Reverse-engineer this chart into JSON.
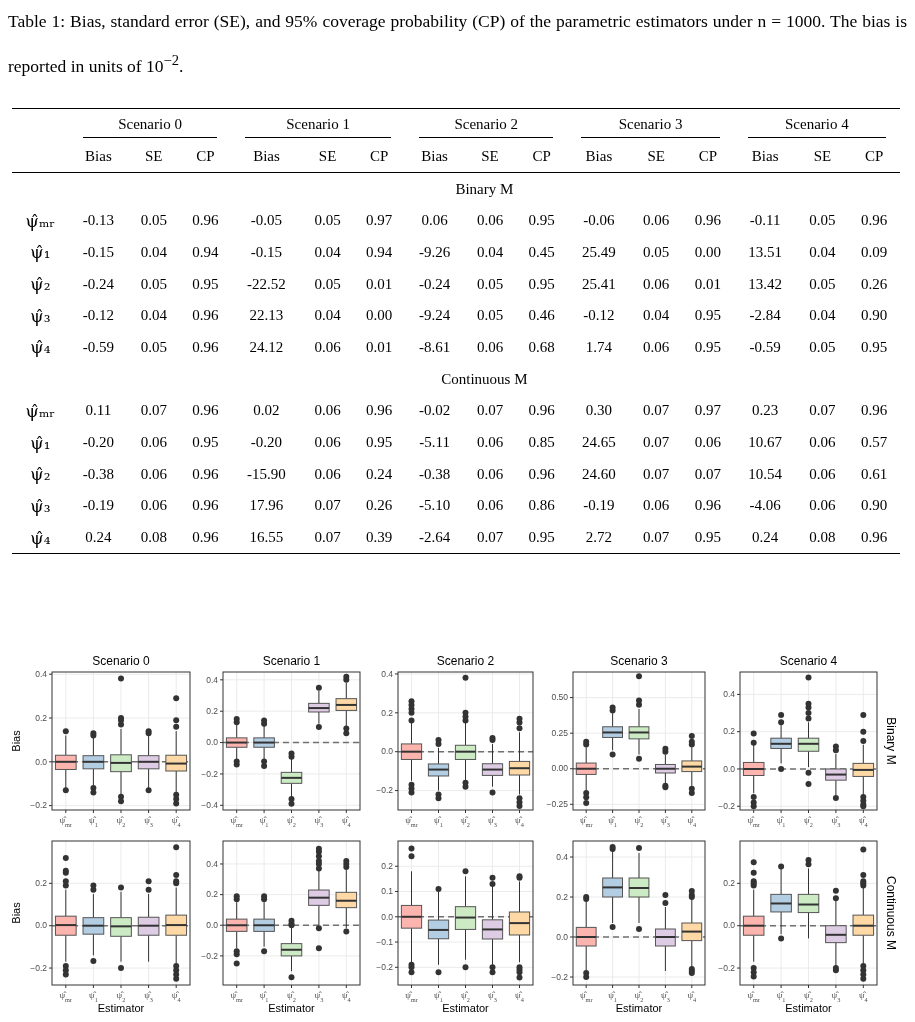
{
  "chart_data": [
    {
      "type": "other",
      "title": "Table 1: Bias, standard error (SE), and 95% coverage probability (CP) of the parametric estimators under n = 1000. The bias is reported in units of 10$^{−2}$.",
      "annotations": [
        "Scenario 0",
        "Scenario 1",
        "Scenario 2",
        "Scenario 3",
        "Scenario 4"
      ],
      "categories": [
        "Bias",
        "SE",
        "CP",
        "Bias",
        "SE",
        "CP",
        "Bias",
        "SE",
        "CP",
        "Bias",
        "SE",
        "CP",
        "Bias",
        "SE",
        "CP"
      ],
      "y_categories": [
        "Binary M",
        "ψ̂ₘᵣ",
        "ψ̂₁",
        "ψ̂₂",
        "ψ̂₃",
        "ψ̂₄",
        "Continuous M",
        "ψ̂ₘᵣ",
        "ψ̂₁",
        "ψ̂₂",
        "ψ̂₃",
        "ψ̂₄"
      ],
      "cell_labels": [
        [
          null,
          null,
          null,
          null,
          null,
          null,
          null,
          null,
          null,
          null,
          null,
          null,
          null,
          null,
          null
        ],
        [
          "-0.13",
          "0.05",
          "0.96",
          "-0.05",
          "0.05",
          "0.97",
          "0.06",
          "0.06",
          "0.95",
          "-0.06",
          "0.06",
          "0.96",
          "-0.11",
          "0.05",
          "0.96"
        ],
        [
          "-0.15",
          "0.04",
          "0.94",
          "-0.15",
          "0.04",
          "0.94",
          "-9.26",
          "0.04",
          "0.45",
          "25.49",
          "0.05",
          "0.00",
          "13.51",
          "0.04",
          "0.09"
        ],
        [
          "-0.24",
          "0.05",
          "0.95",
          "-22.52",
          "0.05",
          "0.01",
          "-0.24",
          "0.05",
          "0.95",
          "25.41",
          "0.06",
          "0.01",
          "13.42",
          "0.05",
          "0.26"
        ],
        [
          "-0.12",
          "0.04",
          "0.96",
          "22.13",
          "0.04",
          "0.00",
          "-9.24",
          "0.05",
          "0.46",
          "-0.12",
          "0.04",
          "0.95",
          "-2.84",
          "0.04",
          "0.90"
        ],
        [
          "-0.59",
          "0.05",
          "0.96",
          "24.12",
          "0.06",
          "0.01",
          "-8.61",
          "0.06",
          "0.68",
          "1.74",
          "0.06",
          "0.95",
          "-0.59",
          "0.05",
          "0.95"
        ],
        [
          null,
          null,
          null,
          null,
          null,
          null,
          null,
          null,
          null,
          null,
          null,
          null,
          null,
          null,
          null
        ],
        [
          "0.11",
          "0.07",
          "0.96",
          "0.02",
          "0.06",
          "0.96",
          "-0.02",
          "0.07",
          "0.96",
          "0.30",
          "0.07",
          "0.97",
          "0.23",
          "0.07",
          "0.96"
        ],
        [
          "-0.20",
          "0.06",
          "0.95",
          "-0.20",
          "0.06",
          "0.95",
          "-5.11",
          "0.06",
          "0.85",
          "24.65",
          "0.07",
          "0.06",
          "10.67",
          "0.06",
          "0.57"
        ],
        [
          "-0.38",
          "0.06",
          "0.96",
          "-15.90",
          "0.06",
          "0.24",
          "-0.38",
          "0.06",
          "0.96",
          "24.60",
          "0.07",
          "0.07",
          "10.54",
          "0.06",
          "0.61"
        ],
        [
          "-0.19",
          "0.06",
          "0.96",
          "17.96",
          "0.07",
          "0.26",
          "-5.10",
          "0.06",
          "0.86",
          "-0.19",
          "0.06",
          "0.96",
          "-4.06",
          "0.06",
          "0.90"
        ],
        [
          "0.24",
          "0.08",
          "0.96",
          "16.55",
          "0.07",
          "0.39",
          "-2.64",
          "0.07",
          "0.95",
          "2.72",
          "0.07",
          "0.95",
          "0.24",
          "0.08",
          "0.96"
        ]
      ]
    },
    {
      "type": "box",
      "title": "Scenario 0",
      "ylabel": "Bias",
      "categories": [
        "ψ̂$_{mr}$",
        "ψ̂$_{1}$",
        "ψ̂$_{2}$",
        "ψ̂$_{3}$",
        "ψ̂$_{4}$"
      ],
      "colors": [
        "#fbb4ae",
        "#b3cde3",
        "#ccebc5",
        "#decbe4",
        "#fed9a6"
      ],
      "ylim": [
        -0.22,
        0.41
      ],
      "yticks": [
        -0.2,
        {
          "value": 0,
          "label": "0.0"
        },
        0.2,
        0.4
      ],
      "grid": true,
      "ref_lines": [
        {
          "axis": "y",
          "value": 0,
          "line_style": "dashed"
        }
      ],
      "boxes": [
        {
          "low": -0.12,
          "q1": -0.035,
          "median": 0,
          "q3": 0.03,
          "high": 0.12,
          "outliers": [
            0.14,
            -0.13
          ]
        },
        {
          "low": -0.11,
          "q1": -0.032,
          "median": 0,
          "q3": 0.028,
          "high": 0.11,
          "outliers": [
            0.12,
            0.13,
            -0.12,
            -0.14
          ]
        },
        {
          "low": -0.15,
          "q1": -0.045,
          "median": -0.005,
          "q3": 0.032,
          "high": 0.15,
          "outliers": [
            0.38,
            0.2,
            0.19,
            0.17,
            -0.16,
            -0.18
          ]
        },
        {
          "low": -0.12,
          "q1": -0.032,
          "median": 0,
          "q3": 0.028,
          "high": 0.12,
          "outliers": [
            0.13,
            0.14,
            -0.13
          ]
        },
        {
          "low": -0.14,
          "q1": -0.042,
          "median": -0.008,
          "q3": 0.03,
          "high": 0.14,
          "outliers": [
            0.29,
            0.19,
            0.16,
            -0.15,
            -0.17,
            -0.19
          ]
        }
      ]
    },
    {
      "type": "box",
      "title": "Scenario 1",
      "categories": [
        "ψ̂$_{mr}$",
        "ψ̂$_{1}$",
        "ψ̂$_{2}$",
        "ψ̂$_{3}$",
        "ψ̂$_{4}$"
      ],
      "colors": [
        "#fbb4ae",
        "#b3cde3",
        "#ccebc5",
        "#decbe4",
        "#fed9a6"
      ],
      "ylim": [
        -0.43,
        0.45
      ],
      "yticks": [
        -0.4,
        -0.2,
        {
          "value": 0,
          "label": "0.0"
        },
        0.2,
        0.4
      ],
      "grid": true,
      "ref_lines": [
        {
          "axis": "y",
          "value": 0,
          "line_style": "dashed"
        }
      ],
      "boxes": [
        {
          "low": -0.11,
          "q1": -0.03,
          "median": 0,
          "q3": 0.03,
          "high": 0.12,
          "outliers": [
            0.13,
            0.15,
            -0.12,
            -0.14
          ]
        },
        {
          "low": -0.11,
          "q1": -0.03,
          "median": 0,
          "q3": 0.03,
          "high": 0.11,
          "outliers": [
            0.12,
            0.14,
            -0.12,
            -0.15
          ]
        },
        {
          "low": -0.35,
          "q1": -0.26,
          "median": -0.225,
          "q3": -0.19,
          "high": -0.1,
          "outliers": [
            -0.07,
            -0.09,
            -0.36,
            -0.39
          ]
        },
        {
          "low": 0.12,
          "q1": 0.195,
          "median": 0.22,
          "q3": 0.25,
          "high": 0.33,
          "outliers": [
            0.35,
            0.1
          ]
        },
        {
          "low": 0.1,
          "q1": 0.205,
          "median": 0.24,
          "q3": 0.28,
          "high": 0.38,
          "outliers": [
            0.4,
            0.42,
            0.09,
            0.06
          ]
        }
      ]
    },
    {
      "type": "box",
      "title": "Scenario 2",
      "categories": [
        "ψ̂$_{mr}$",
        "ψ̂$_{1}$",
        "ψ̂$_{2}$",
        "ψ̂$_{3}$",
        "ψ̂$_{4}$"
      ],
      "colors": [
        "#fbb4ae",
        "#b3cde3",
        "#ccebc5",
        "#decbe4",
        "#fed9a6"
      ],
      "ylim": [
        -0.3,
        0.41
      ],
      "yticks": [
        -0.2,
        {
          "value": 0,
          "label": "0.0"
        },
        0.2,
        0.4
      ],
      "grid": true,
      "ref_lines": [
        {
          "axis": "y",
          "value": 0,
          "line_style": "dashed"
        }
      ],
      "boxes": [
        {
          "low": -0.15,
          "q1": -0.04,
          "median": 0,
          "q3": 0.04,
          "high": 0.15,
          "outliers": [
            0.16,
            0.2,
            0.22,
            0.24,
            0.26,
            -0.17,
            -0.19,
            -0.21
          ]
        },
        {
          "low": -0.2,
          "q1": -0.125,
          "median": -0.092,
          "q3": -0.063,
          "high": 0.02,
          "outliers": [
            0.04,
            0.06,
            -0.22,
            -0.24
          ]
        },
        {
          "low": -0.15,
          "q1": -0.04,
          "median": 0,
          "q3": 0.033,
          "high": 0.15,
          "outliers": [
            0.38,
            0.2,
            0.18,
            0.16,
            -0.16,
            -0.18
          ]
        },
        {
          "low": -0.18,
          "q1": -0.122,
          "median": -0.092,
          "q3": -0.062,
          "high": 0.04,
          "outliers": [
            0.06,
            0.07,
            -0.21
          ]
        },
        {
          "low": -0.22,
          "q1": -0.12,
          "median": -0.085,
          "q3": -0.05,
          "high": 0.1,
          "outliers": [
            0.12,
            0.15,
            0.17,
            -0.24,
            -0.26,
            -0.28
          ]
        }
      ]
    },
    {
      "type": "box",
      "title": "Scenario 3",
      "categories": [
        "ψ̂$_{mr}$",
        "ψ̂$_{1}$",
        "ψ̂$_{2}$",
        "ψ̂$_{3}$",
        "ψ̂$_{4}$"
      ],
      "colors": [
        "#fbb4ae",
        "#b3cde3",
        "#ccebc5",
        "#decbe4",
        "#fed9a6"
      ],
      "ylim": [
        -0.29,
        0.68
      ],
      "yticks": [
        {
          "value": -0.25,
          "label": "−0.25"
        },
        {
          "value": 0,
          "label": "0.00"
        },
        0.25,
        {
          "value": 0.5,
          "label": "0.50"
        }
      ],
      "grid": true,
      "ref_lines": [
        {
          "axis": "y",
          "value": 0,
          "line_style": "dashed"
        }
      ],
      "boxes": [
        {
          "low": -0.15,
          "q1": -0.04,
          "median": 0,
          "q3": 0.04,
          "high": 0.15,
          "outliers": [
            0.17,
            0.19,
            -0.17,
            -0.2,
            -0.24
          ]
        },
        {
          "low": 0.13,
          "q1": 0.22,
          "median": 0.255,
          "q3": 0.295,
          "high": 0.39,
          "outliers": [
            0.41,
            0.43,
            0.1
          ]
        },
        {
          "low": 0.1,
          "q1": 0.21,
          "median": 0.255,
          "q3": 0.295,
          "high": 0.42,
          "outliers": [
            0.45,
            0.48,
            0.65,
            0.07
          ]
        },
        {
          "low": -0.1,
          "q1": -0.03,
          "median": 0,
          "q3": 0.03,
          "high": 0.1,
          "outliers": [
            0.12,
            0.14,
            -0.12,
            -0.13
          ]
        },
        {
          "low": -0.12,
          "q1": -0.02,
          "median": 0.015,
          "q3": 0.055,
          "high": 0.15,
          "outliers": [
            0.17,
            0.19,
            0.23,
            -0.14,
            -0.17
          ]
        }
      ]
    },
    {
      "type": "box",
      "title": "Scenario 4",
      "annotations": [
        "Binary M"
      ],
      "categories": [
        "ψ̂$_{mr}$",
        "ψ̂$_{1}$",
        "ψ̂$_{2}$",
        "ψ̂$_{3}$",
        "ψ̂$_{4}$"
      ],
      "colors": [
        "#fbb4ae",
        "#b3cde3",
        "#ccebc5",
        "#decbe4",
        "#fed9a6"
      ],
      "ylim": [
        -0.22,
        0.52
      ],
      "yticks": [
        -0.2,
        {
          "value": 0,
          "label": "0.0"
        },
        0.2,
        0.4
      ],
      "grid": true,
      "ref_lines": [
        {
          "axis": "y",
          "value": 0,
          "line_style": "dashed"
        }
      ],
      "boxes": [
        {
          "low": -0.13,
          "q1": -0.035,
          "median": 0,
          "q3": 0.035,
          "high": 0.13,
          "outliers": [
            0.14,
            0.19,
            -0.15,
            -0.18,
            -0.2
          ]
        },
        {
          "low": 0.03,
          "q1": 0.11,
          "median": 0.135,
          "q3": 0.165,
          "high": 0.24,
          "outliers": [
            0.25,
            0.29,
            0
          ]
        },
        {
          "low": 0.01,
          "q1": 0.095,
          "median": 0.135,
          "q3": 0.165,
          "high": 0.25,
          "outliers": [
            0.27,
            0.3,
            0.33,
            0.35,
            0.49,
            -0.02,
            -0.08
          ]
        },
        {
          "low": -0.14,
          "q1": -0.06,
          "median": -0.03,
          "q3": 0,
          "high": 0.08,
          "outliers": [
            0.1,
            0.12,
            -0.155
          ]
        },
        {
          "low": -0.14,
          "q1": -0.04,
          "median": -0.005,
          "q3": 0.03,
          "high": 0.13,
          "outliers": [
            0.15,
            0.2,
            0.29,
            -0.15,
            -0.17,
            -0.19,
            -0.2
          ]
        }
      ]
    },
    {
      "type": "box",
      "ylabel": "Bias",
      "xlabel": "Estimator",
      "categories": [
        "ψ̂$_{mr}$",
        "ψ̂$_{1}$",
        "ψ̂$_{2}$",
        "ψ̂$_{3}$",
        "ψ̂$_{4}$"
      ],
      "colors": [
        "#fbb4ae",
        "#b3cde3",
        "#ccebc5",
        "#decbe4",
        "#fed9a6"
      ],
      "ylim": [
        -0.28,
        0.4
      ],
      "yticks": [
        -0.2,
        {
          "value": 0,
          "label": "0.0"
        },
        0.2
      ],
      "grid": true,
      "ref_lines": [
        {
          "axis": "y",
          "value": 0,
          "line_style": "dashed"
        }
      ],
      "boxes": [
        {
          "low": -0.17,
          "q1": -0.045,
          "median": 0.003,
          "q3": 0.045,
          "high": 0.17,
          "outliers": [
            0.19,
            0.21,
            0.25,
            0.26,
            0.32,
            -0.19,
            -0.21,
            -0.23
          ]
        },
        {
          "low": -0.14,
          "q1": -0.04,
          "median": 0,
          "q3": 0.038,
          "high": 0.15,
          "outliers": [
            0.17,
            0.19,
            -0.167
          ]
        },
        {
          "low": -0.17,
          "q1": -0.05,
          "median": -0.003,
          "q3": 0.038,
          "high": 0.16,
          "outliers": [
            0.18,
            -0.2
          ]
        },
        {
          "low": -0.17,
          "q1": -0.045,
          "median": 0,
          "q3": 0.04,
          "high": 0.15,
          "outliers": [
            0.17,
            0.21
          ]
        },
        {
          "low": -0.18,
          "q1": -0.045,
          "median": 0.003,
          "q3": 0.05,
          "high": 0.18,
          "outliers": [
            0.2,
            0.21,
            0.24,
            0.37,
            -0.19,
            -0.21,
            -0.23,
            -0.25
          ]
        }
      ]
    },
    {
      "type": "box",
      "xlabel": "Estimator",
      "categories": [
        "ψ̂$_{mr}$",
        "ψ̂$_{1}$",
        "ψ̂$_{2}$",
        "ψ̂$_{3}$",
        "ψ̂$_{4}$"
      ],
      "colors": [
        "#fbb4ae",
        "#b3cde3",
        "#ccebc5",
        "#decbe4",
        "#fed9a6"
      ],
      "ylim": [
        -0.39,
        0.55
      ],
      "yticks": [
        -0.2,
        {
          "value": 0,
          "label": "0.0"
        },
        0.2,
        0.4
      ],
      "grid": true,
      "ref_lines": [
        {
          "axis": "y",
          "value": 0,
          "line_style": "dashed"
        }
      ],
      "boxes": [
        {
          "low": -0.15,
          "q1": -0.04,
          "median": 0,
          "q3": 0.04,
          "high": 0.15,
          "outliers": [
            0.17,
            0.19,
            -0.17,
            -0.19,
            -0.25
          ]
        },
        {
          "low": -0.14,
          "q1": -0.04,
          "median": 0,
          "q3": 0.04,
          "high": 0.15,
          "outliers": [
            0.17,
            0.19,
            -0.17
          ]
        },
        {
          "low": -0.3,
          "q1": -0.2,
          "median": -0.16,
          "q3": -0.12,
          "high": -0.01,
          "outliers": [
            0,
            0.01,
            0.03,
            -0.34
          ]
        },
        {
          "low": 0,
          "q1": 0.13,
          "median": 0.18,
          "q3": 0.23,
          "high": 0.36,
          "outliers": [
            0.37,
            0.4,
            0.42,
            0.45,
            0.48,
            0.5,
            -0.02,
            -0.15
          ]
        },
        {
          "low": -0.02,
          "q1": 0.115,
          "median": 0.16,
          "q3": 0.215,
          "high": 0.36,
          "outliers": [
            0.38,
            0.4,
            0.42,
            -0.04
          ]
        }
      ]
    },
    {
      "type": "box",
      "xlabel": "Estimator",
      "categories": [
        "ψ̂$_{mr}$",
        "ψ̂$_{1}$",
        "ψ̂$_{2}$",
        "ψ̂$_{3}$",
        "ψ̂$_{4}$"
      ],
      "colors": [
        "#fbb4ae",
        "#b3cde3",
        "#ccebc5",
        "#decbe4",
        "#fed9a6"
      ],
      "ylim": [
        -0.27,
        0.3
      ],
      "yticks": [
        -0.2,
        -0.1,
        {
          "value": 0,
          "label": "0.0"
        },
        0.1,
        0.2
      ],
      "grid": true,
      "ref_lines": [
        {
          "axis": "y",
          "value": 0,
          "line_style": "dashed"
        }
      ],
      "boxes": [
        {
          "low": -0.18,
          "q1": -0.045,
          "median": 0,
          "q3": 0.045,
          "high": 0.18,
          "outliers": [
            0.24,
            0.27,
            -0.19,
            -0.2,
            -0.22
          ]
        },
        {
          "low": -0.19,
          "q1": -0.087,
          "median": -0.052,
          "q3": -0.013,
          "high": 0.1,
          "outliers": [
            0.11,
            -0.22
          ]
        },
        {
          "low": -0.17,
          "q1": -0.05,
          "median": -0.003,
          "q3": 0.04,
          "high": 0.16,
          "outliers": [
            0.18,
            -0.2
          ]
        },
        {
          "low": -0.19,
          "q1": -0.088,
          "median": -0.05,
          "q3": -0.012,
          "high": 0.12,
          "outliers": [
            0.13,
            0.155,
            -0.2,
            -0.22
          ]
        },
        {
          "low": -0.18,
          "q1": -0.072,
          "median": -0.025,
          "q3": 0.019,
          "high": 0.14,
          "outliers": [
            0.155,
            0.16,
            -0.2,
            -0.21,
            -0.22,
            -0.24
          ]
        }
      ]
    },
    {
      "type": "box",
      "xlabel": "Estimator",
      "categories": [
        "ψ̂$_{mr}$",
        "ψ̂$_{1}$",
        "ψ̂$_{2}$",
        "ψ̂$_{3}$",
        "ψ̂$_{4}$"
      ],
      "colors": [
        "#fbb4ae",
        "#b3cde3",
        "#ccebc5",
        "#decbe4",
        "#fed9a6"
      ],
      "ylim": [
        -0.24,
        0.48
      ],
      "yticks": [
        -0.2,
        {
          "value": 0,
          "label": "0.0"
        },
        0.2,
        0.4
      ],
      "grid": true,
      "ref_lines": [
        {
          "axis": "y",
          "value": 0,
          "line_style": "dashed"
        }
      ],
      "boxes": [
        {
          "low": -0.17,
          "q1": -0.045,
          "median": 0,
          "q3": 0.048,
          "high": 0.18,
          "outliers": [
            0.19,
            0.2,
            -0.18,
            -0.2
          ]
        },
        {
          "low": 0.07,
          "q1": 0.2,
          "median": 0.248,
          "q3": 0.295,
          "high": 0.43,
          "outliers": [
            0.44,
            0.45,
            0.05
          ]
        },
        {
          "low": 0.07,
          "q1": 0.2,
          "median": 0.245,
          "q3": 0.295,
          "high": 0.42,
          "outliers": [
            0.445,
            0.04
          ]
        },
        {
          "low": -0.17,
          "q1": -0.045,
          "median": 0,
          "q3": 0.04,
          "high": 0.15,
          "outliers": [
            0.17,
            0.21
          ]
        },
        {
          "low": -0.15,
          "q1": -0.018,
          "median": 0.027,
          "q3": 0.07,
          "high": 0.19,
          "outliers": [
            0.2,
            0.21,
            0.23,
            -0.16,
            -0.17,
            -0.18
          ]
        }
      ]
    },
    {
      "type": "box",
      "xlabel": "Estimator",
      "annotations": [
        "Continuous M"
      ],
      "categories": [
        "ψ̂$_{mr}$",
        "ψ̂$_{1}$",
        "ψ̂$_{2}$",
        "ψ̂$_{3}$",
        "ψ̂$_{4}$"
      ],
      "colors": [
        "#fbb4ae",
        "#b3cde3",
        "#ccebc5",
        "#decbe4",
        "#fed9a6"
      ],
      "ylim": [
        -0.28,
        0.4
      ],
      "yticks": [
        -0.2,
        {
          "value": 0,
          "label": "0.0"
        },
        0.2
      ],
      "grid": true,
      "ref_lines": [
        {
          "axis": "y",
          "value": 0,
          "line_style": "dashed"
        }
      ],
      "boxes": [
        {
          "low": -0.17,
          "q1": -0.045,
          "median": 0,
          "q3": 0.045,
          "high": 0.17,
          "outliers": [
            0.19,
            0.2,
            0.21,
            0.25,
            0.3,
            -0.2,
            -0.22,
            -0.24
          ]
        },
        {
          "low": -0.04,
          "q1": 0.065,
          "median": 0.105,
          "q3": 0.148,
          "high": 0.27,
          "outliers": [
            0.28,
            -0.06
          ]
        },
        {
          "low": -0.06,
          "q1": 0.062,
          "median": 0.1,
          "q3": 0.148,
          "high": 0.27,
          "outliers": [
            0.29,
            0.31
          ]
        },
        {
          "low": -0.19,
          "q1": -0.08,
          "median": -0.043,
          "q3": 0,
          "high": 0.12,
          "outliers": [
            0.13,
            0.165,
            -0.2,
            -0.21
          ]
        },
        {
          "low": -0.18,
          "q1": -0.045,
          "median": 0,
          "q3": 0.05,
          "high": 0.18,
          "outliers": [
            0.19,
            0.2,
            0.21,
            0.24,
            0.36,
            -0.19,
            -0.21,
            -0.23,
            -0.25
          ]
        }
      ]
    }
  ]
}
